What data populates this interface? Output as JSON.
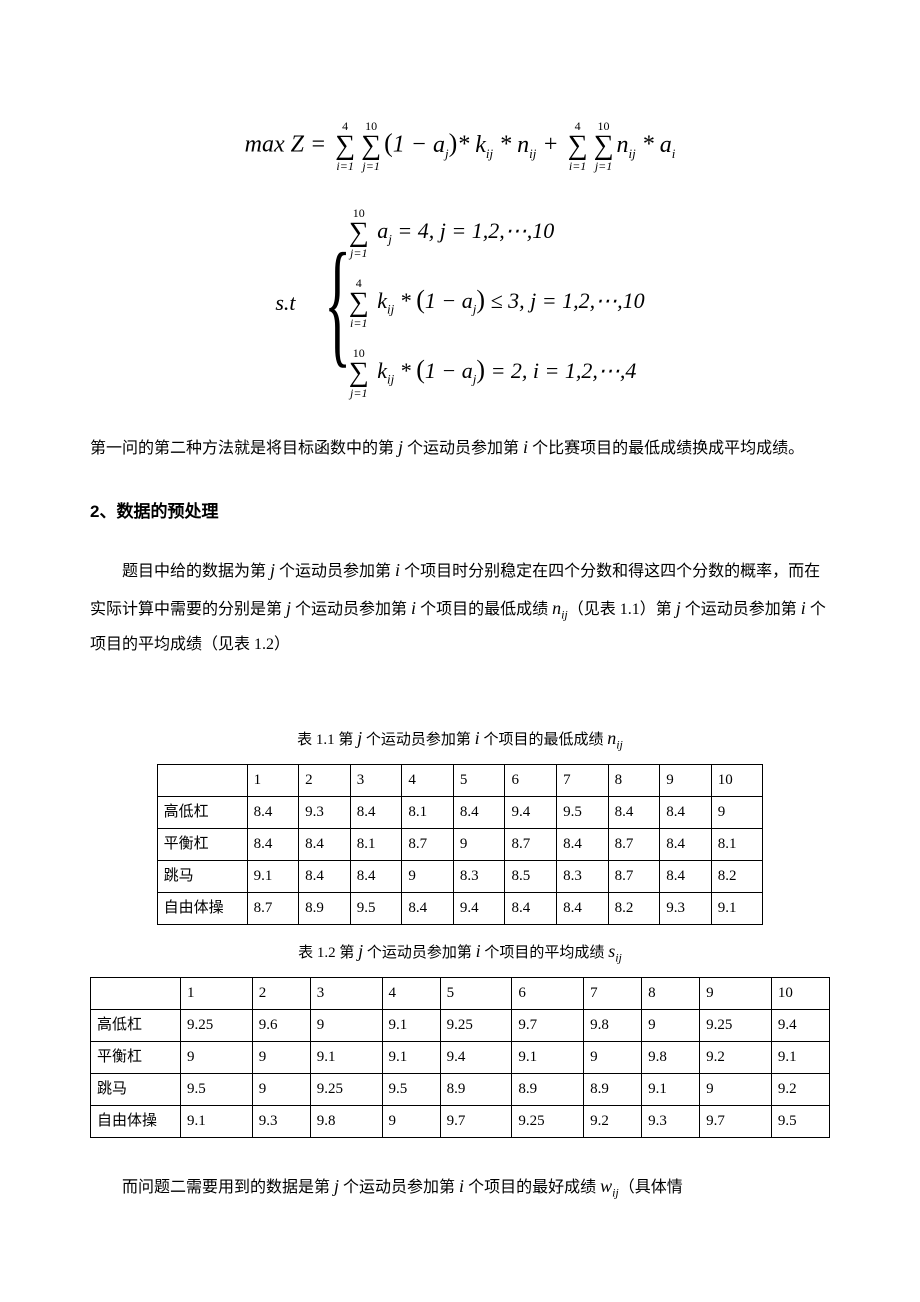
{
  "math": {
    "objective": "max Z = ΣΣ(1 − aⱼ) * kᵢⱼ * nᵢⱼ + ΣΣnᵢⱼ * aᵢ",
    "objective_top1": "4",
    "objective_top2": "10",
    "objective_bot1": "i=1",
    "objective_bot2": "j=1",
    "st": "s.t",
    "c1_top": "10",
    "c1_bot": "j=1",
    "c1_body": "aⱼ = 4, j = 1,2,⋯,10",
    "c2_top": "4",
    "c2_bot": "i=1",
    "c2_body": "kᵢⱼ * (1 − aⱼ) ≤ 3, j = 1,2,⋯,10",
    "c3_top": "10",
    "c3_bot": "j=1",
    "c3_body": "kᵢⱼ * (1 − aⱼ) = 2, i = 1,2,⋯,4"
  },
  "paragraphs": {
    "p1_a": "第一问的第二种方法就是将目标函数中的第 ",
    "p1_b": " 个运动员参加第 ",
    "p1_c": " 个比赛项目的最低成绩换成平均成绩。",
    "h2": "2、数据的预处理",
    "p2_a": "题目中给的数据为第 ",
    "p2_b": " 个运动员参加第 ",
    "p2_c": " 个项目时分别稳定在四个分数和得这四个分数的概率，而在实际计算中需要的分别是第 ",
    "p2_d": " 个运动员参加第 ",
    "p2_e": " 个项目的最低成绩 ",
    "p2_f": "（见表 1.1）第 ",
    "p2_g": " 个运动员参加第 ",
    "p2_h": " 个项目的平均成绩（见表 1.2）",
    "p3_a": "而问题二需要用到的数据是第 ",
    "p3_b": " 个运动员参加第 ",
    "p3_c": " 个项目的最好成绩 ",
    "p3_d": "（具体情"
  },
  "vars": {
    "j": "j",
    "i": "i",
    "nij": "n",
    "nij_sub": "ij",
    "sij": "s",
    "sij_sub": "ij",
    "wij": "w",
    "wij_sub": "ij"
  },
  "table1": {
    "caption_a": "表 1.1  第 ",
    "caption_b": " 个运动员参加第 ",
    "caption_c": " 个项目的最低成绩 ",
    "headers": [
      "",
      "1",
      "2",
      "3",
      "4",
      "5",
      "6",
      "7",
      "8",
      "9",
      "10"
    ],
    "rows": [
      {
        "label": "高低杠",
        "cells": [
          "8.4",
          "9.3",
          "8.4",
          "8.1",
          "8.4",
          "9.4",
          "9.5",
          "8.4",
          "8.4",
          "9"
        ]
      },
      {
        "label": "平衡杠",
        "cells": [
          "8.4",
          "8.4",
          "8.1",
          "8.7",
          "9",
          "8.7",
          "8.4",
          "8.7",
          "8.4",
          "8.1"
        ]
      },
      {
        "label": "跳马",
        "cells": [
          "9.1",
          "8.4",
          "8.4",
          "9",
          "8.3",
          "8.5",
          "8.3",
          "8.7",
          "8.4",
          "8.2"
        ]
      },
      {
        "label": "自由体操",
        "cells": [
          "8.7",
          "8.9",
          "9.5",
          "8.4",
          "9.4",
          "8.4",
          "8.4",
          "8.2",
          "9.3",
          "9.1"
        ]
      }
    ]
  },
  "table2": {
    "caption_a": "表 1.2  第 ",
    "caption_b": " 个运动员参加第 ",
    "caption_c": " 个项目的平均成绩 ",
    "headers": [
      "",
      "1",
      "2",
      "3",
      "4",
      "5",
      "6",
      "7",
      "8",
      "9",
      "10"
    ],
    "rows": [
      {
        "label": "高低杠",
        "cells": [
          "9.25",
          "9.6",
          "9",
          "9.1",
          "9.25",
          "9.7",
          "9.8",
          "9",
          "9.25",
          "9.4"
        ]
      },
      {
        "label": "平衡杠",
        "cells": [
          "9",
          "9",
          "9.1",
          "9.1",
          "9.4",
          "9.1",
          "9",
          "9.8",
          "9.2",
          "9.1"
        ]
      },
      {
        "label": "跳马",
        "cells": [
          "9.5",
          "9",
          "9.25",
          "9.5",
          "8.9",
          "8.9",
          "8.9",
          "9.1",
          "9",
          "9.2"
        ]
      },
      {
        "label": "自由体操",
        "cells": [
          "9.1",
          "9.3",
          "9.8",
          "9",
          "9.7",
          "9.25",
          "9.2",
          "9.3",
          "9.7",
          "9.5"
        ]
      }
    ]
  }
}
